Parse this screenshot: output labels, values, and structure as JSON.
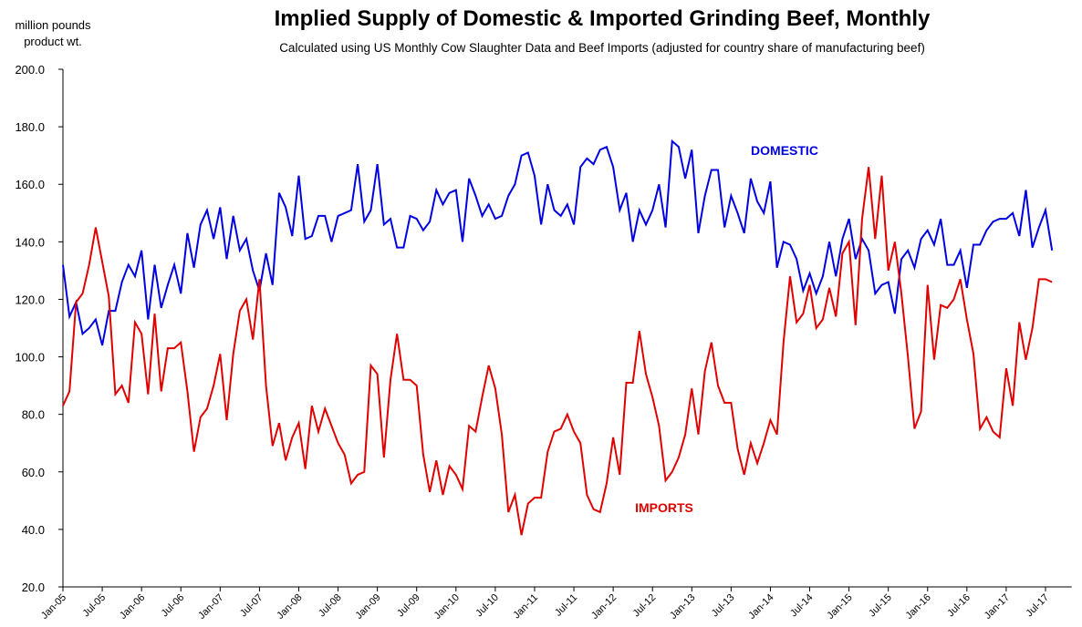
{
  "chart_data": {
    "type": "line",
    "title": "Implied Supply of Domestic & Imported Grinding Beef, Monthly",
    "subtitle": "Calculated using US Monthly Cow Slaughter Data and Beef Imports  (adjusted for country share of manufacturing beef)",
    "ylabel": [
      "million pounds",
      "product wt."
    ],
    "categories": [
      "Jan-05",
      null,
      null,
      null,
      null,
      null,
      "Jul-05",
      null,
      null,
      null,
      null,
      null,
      "Jan-06",
      null,
      null,
      null,
      null,
      null,
      "Jul-06",
      null,
      null,
      null,
      null,
      null,
      "Jan-07",
      null,
      null,
      null,
      null,
      null,
      "Jul-07",
      null,
      null,
      null,
      null,
      null,
      "Jan-08",
      null,
      null,
      null,
      null,
      null,
      "Jul-08",
      null,
      null,
      null,
      null,
      null,
      "Jan-09",
      null,
      null,
      null,
      null,
      null,
      "Jul-09",
      null,
      null,
      null,
      null,
      null,
      "Jan-10",
      null,
      null,
      null,
      null,
      null,
      "Jul-10",
      null,
      null,
      null,
      null,
      null,
      "Jan-11",
      null,
      null,
      null,
      null,
      null,
      "Jul-11",
      null,
      null,
      null,
      null,
      null,
      "Jan-12",
      null,
      null,
      null,
      null,
      null,
      "Jul-12",
      null,
      null,
      null,
      null,
      null,
      "Jan-13",
      null,
      null,
      null,
      null,
      null,
      "Jul-13",
      null,
      null,
      null,
      null,
      null,
      "Jan-14",
      null,
      null,
      null,
      null,
      null,
      "Jul-14",
      null,
      null,
      null,
      null,
      null,
      "Jan-15",
      null,
      null,
      null,
      null,
      null,
      "Jul-15",
      null,
      null,
      null,
      null,
      null,
      "Jan-16",
      null,
      null,
      null,
      null,
      null,
      "Jul-16",
      null,
      null,
      null,
      null,
      null,
      "Jan-17",
      null,
      null,
      null,
      null,
      null,
      "Jul-17",
      null
    ],
    "series": [
      {
        "name": "DOMESTIC",
        "color": "#0000e0",
        "values": [
          132,
          114,
          119,
          108,
          110,
          113,
          104,
          116,
          116,
          126,
          132,
          128,
          137,
          113,
          132,
          117,
          125,
          132,
          122,
          143,
          131,
          146,
          151,
          141,
          152,
          134,
          149,
          137,
          141,
          130,
          123,
          136,
          125,
          157,
          152,
          142,
          163,
          141,
          142,
          149,
          149,
          140,
          149,
          150,
          151,
          167,
          147,
          151,
          167,
          146,
          148,
          138,
          138,
          149,
          148,
          144,
          147,
          158,
          153,
          157,
          158,
          140,
          162,
          156,
          149,
          153,
          148,
          149,
          156,
          160,
          170,
          171,
          163,
          146,
          160,
          151,
          149,
          153,
          146,
          166,
          169,
          167,
          172,
          173,
          166,
          151,
          157,
          140,
          151,
          146,
          151,
          160,
          145,
          175,
          173,
          162,
          172,
          143,
          156,
          165,
          165,
          145,
          156,
          150,
          143,
          162,
          154,
          150,
          161,
          131,
          140,
          139,
          134,
          123,
          129,
          122,
          128,
          140,
          128,
          141,
          148,
          134,
          141,
          137,
          122,
          125,
          126,
          115,
          134,
          137,
          131,
          141,
          144,
          139,
          148,
          132,
          132,
          137,
          124,
          139,
          139,
          144,
          147,
          148,
          148,
          150,
          142,
          158,
          138,
          145,
          151,
          137
        ]
      },
      {
        "name": "IMPORTS",
        "color": "#e00000",
        "values": [
          83,
          88,
          119,
          122,
          132,
          145,
          133,
          121,
          87,
          90,
          84,
          112,
          108,
          87,
          115,
          88,
          103,
          103,
          105,
          88,
          67,
          79,
          82,
          90,
          101,
          78,
          101,
          116,
          120,
          106,
          127,
          90,
          69,
          77,
          64,
          72,
          77,
          61,
          83,
          74,
          82,
          76,
          70,
          66,
          56,
          59,
          60,
          97,
          94,
          65,
          92,
          108,
          92,
          92,
          90,
          66,
          53,
          64,
          52,
          62,
          59,
          54,
          76,
          74,
          86,
          97,
          89,
          73,
          46,
          52,
          38,
          49,
          51,
          51,
          67,
          74,
          75,
          80,
          74,
          70,
          52,
          47,
          46,
          56,
          72,
          59,
          91,
          91,
          109,
          94,
          86,
          76,
          57,
          60,
          65,
          73,
          89,
          73,
          95,
          105,
          90,
          84,
          84,
          68,
          59,
          70,
          63,
          70,
          78,
          73,
          105,
          128,
          112,
          115,
          125,
          110,
          113,
          124,
          114,
          136,
          140,
          111,
          148,
          166,
          141,
          163,
          130,
          140,
          122,
          100,
          75,
          81,
          125,
          99,
          118,
          117,
          120,
          127,
          113,
          101,
          75,
          79,
          74,
          72,
          96,
          83,
          112,
          99,
          110,
          127,
          127,
          126
        ]
      }
    ],
    "ylim": [
      20,
      200
    ],
    "yticks": [
      {
        "value": 20,
        "label": "20.0"
      },
      {
        "value": 40,
        "label": "40.0"
      },
      {
        "value": 60,
        "label": "60.0"
      },
      {
        "value": 80,
        "label": "80.0"
      },
      {
        "value": 100,
        "label": "100.0"
      },
      {
        "value": 120,
        "label": "120.0"
      },
      {
        "value": 140,
        "label": "140.0"
      },
      {
        "value": 160,
        "label": "160.0"
      },
      {
        "value": 180,
        "label": "180.0"
      },
      {
        "value": 200,
        "label": "200.0"
      }
    ],
    "grid": false,
    "legend": "inline"
  }
}
